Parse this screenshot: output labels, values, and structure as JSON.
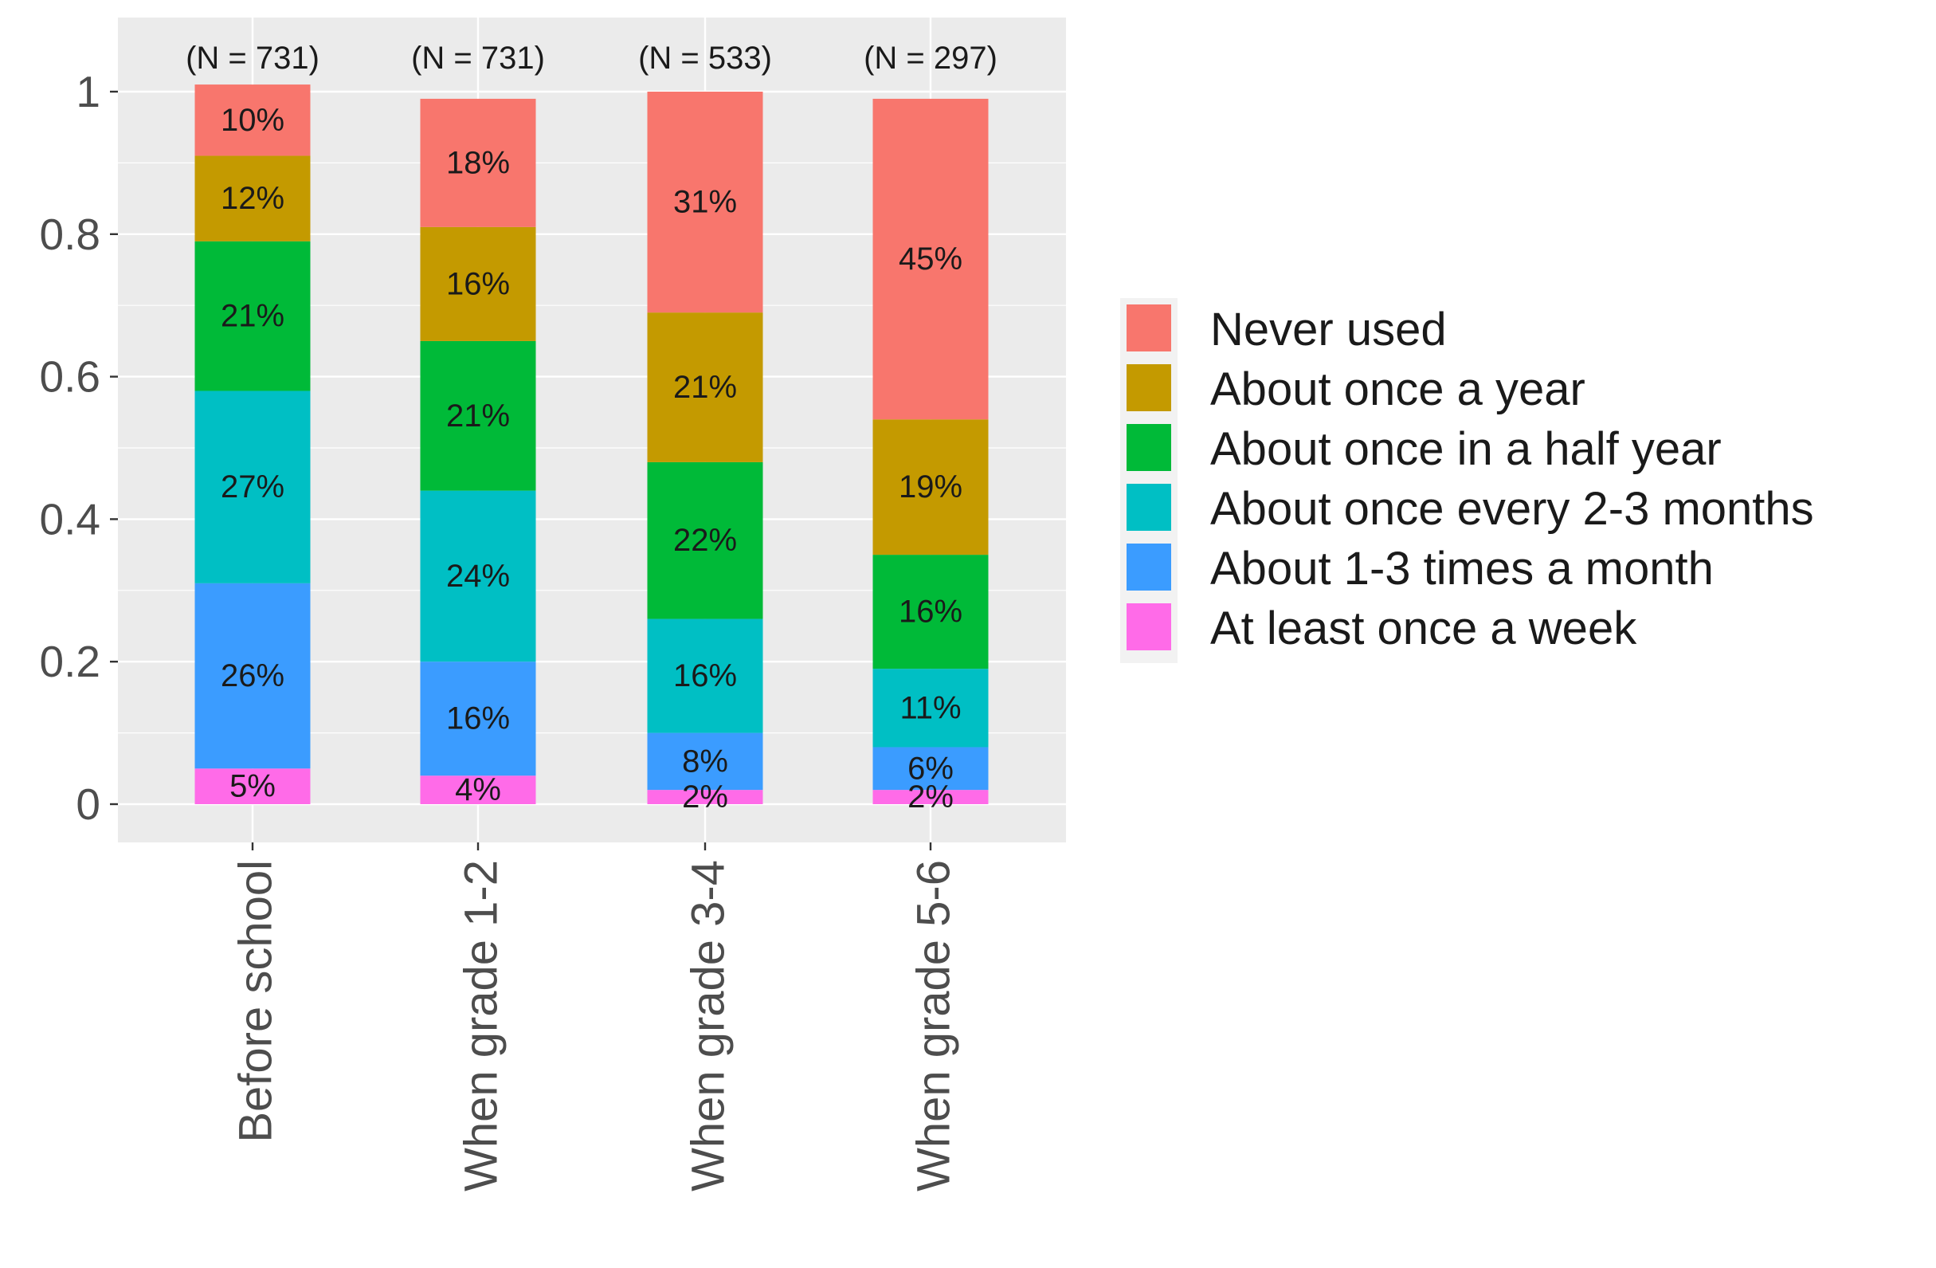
{
  "chart_data": {
    "type": "bar",
    "stacked": true,
    "title": "",
    "xlabel": "",
    "ylabel": "",
    "ylim": [
      0,
      1
    ],
    "yticks": [
      "0",
      "0.2",
      "0.4",
      "0.6",
      "0.8",
      "1"
    ],
    "ytick_values": [
      0,
      0.2,
      0.4,
      0.6,
      0.8,
      1
    ],
    "categories": [
      "Before school",
      "When grade 1-2",
      "When grade 3-4",
      "When grade 5-6"
    ],
    "n_labels": [
      "(N = 731)",
      "(N = 731)",
      "(N = 533)",
      "(N = 297)"
    ],
    "grid": true,
    "legend_position": "right",
    "series": [
      {
        "name": "At least once a week",
        "color": "#FF6BE8",
        "values": [
          0.05,
          0.04,
          0.02,
          0.02
        ],
        "labels": [
          "5%",
          "4%",
          "2%",
          "2%"
        ]
      },
      {
        "name": "About 1-3 times a month",
        "color": "#3B9CFF",
        "values": [
          0.26,
          0.16,
          0.08,
          0.06
        ],
        "labels": [
          "26%",
          "16%",
          "8%",
          "6%"
        ]
      },
      {
        "name": "About once every 2-3 months",
        "color": "#00BFC4",
        "values": [
          0.27,
          0.24,
          0.16,
          0.11
        ],
        "labels": [
          "27%",
          "24%",
          "16%",
          "11%"
        ]
      },
      {
        "name": "About once in a half year",
        "color": "#00BA38",
        "values": [
          0.21,
          0.21,
          0.22,
          0.16
        ],
        "labels": [
          "21%",
          "21%",
          "22%",
          "16%"
        ]
      },
      {
        "name": "About once a year",
        "color": "#C49A00",
        "values": [
          0.12,
          0.16,
          0.21,
          0.19
        ],
        "labels": [
          "12%",
          "16%",
          "21%",
          "19%"
        ]
      },
      {
        "name": "Never used",
        "color": "#F8766D",
        "values": [
          0.1,
          0.18,
          0.31,
          0.45
        ],
        "labels": [
          "10%",
          "18%",
          "31%",
          "45%"
        ]
      }
    ],
    "legend_order": [
      "Never used",
      "About once a year",
      "About once in a half year",
      "About once every 2-3 months",
      "About 1-3 times a month",
      "At least once a week"
    ],
    "panel_color": "#EBEBEB",
    "gridline_color": "#FFFFFF",
    "tick_label_color": "#4D4D4D",
    "data_label_color": "#1A1A1A"
  }
}
